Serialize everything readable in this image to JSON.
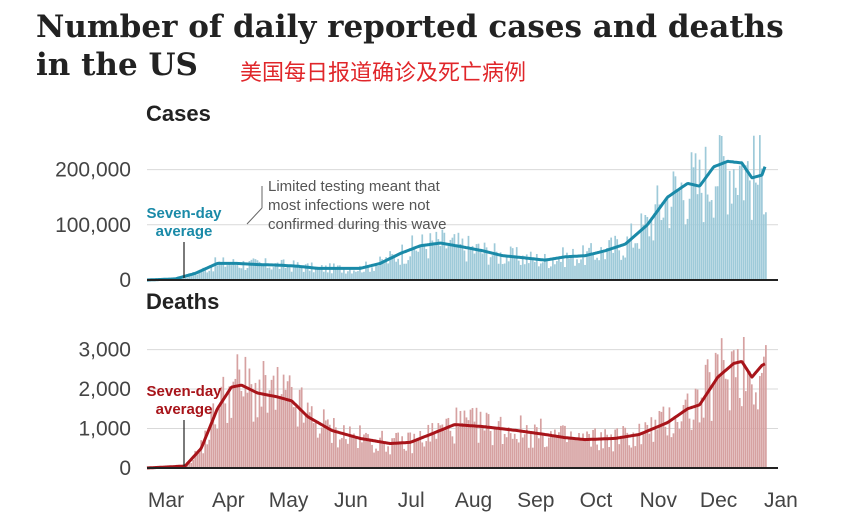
{
  "title": {
    "line1": "Number of daily reported cases and deaths",
    "line2": "in the US",
    "subtitle_cn": "美国每日报道确诊及死亡病例"
  },
  "months": [
    "Mar",
    "Apr",
    "May",
    "Jun",
    "Jul",
    "Aug",
    "Sep",
    "Oct",
    "Nov",
    "Dec",
    "Jan"
  ],
  "colors": {
    "cases_bar": "#9ecad9",
    "cases_line": "#1a8aa8",
    "deaths_bar": "#d6a1a1",
    "deaths_line": "#a8141a",
    "grid": "#d9d9d9",
    "axis": "#222222"
  },
  "chart_data": [
    {
      "type": "bar",
      "panel_title": "Cases",
      "ylim": [
        0,
        250000
      ],
      "yticks": [
        0,
        100000,
        200000
      ],
      "ytick_labels": [
        "0",
        "100,000",
        "200,000"
      ],
      "annotation": [
        "Limited testing meant that",
        "most infections were not",
        "confirmed during this wave"
      ],
      "avg_label": [
        "Seven-day",
        "average"
      ],
      "series_name": "Seven-day average",
      "seven_day_average": [
        [
          "2020-03-01",
          0
        ],
        [
          "2020-03-15",
          2000
        ],
        [
          "2020-03-25",
          12000
        ],
        [
          "2020-04-05",
          30000
        ],
        [
          "2020-04-15",
          30000
        ],
        [
          "2020-04-25",
          28000
        ],
        [
          "2020-05-05",
          27000
        ],
        [
          "2020-05-15",
          25000
        ],
        [
          "2020-05-25",
          21000
        ],
        [
          "2020-06-05",
          21000
        ],
        [
          "2020-06-15",
          21000
        ],
        [
          "2020-06-25",
          30000
        ],
        [
          "2020-07-05",
          48000
        ],
        [
          "2020-07-15",
          62000
        ],
        [
          "2020-07-25",
          67000
        ],
        [
          "2020-08-05",
          60000
        ],
        [
          "2020-08-15",
          53000
        ],
        [
          "2020-08-25",
          44000
        ],
        [
          "2020-09-05",
          40000
        ],
        [
          "2020-09-15",
          36000
        ],
        [
          "2020-09-25",
          42000
        ],
        [
          "2020-10-05",
          44000
        ],
        [
          "2020-10-15",
          53000
        ],
        [
          "2020-10-25",
          65000
        ],
        [
          "2020-11-05",
          100000
        ],
        [
          "2020-11-15",
          150000
        ],
        [
          "2020-11-25",
          175000
        ],
        [
          "2020-12-01",
          170000
        ],
        [
          "2020-12-08",
          205000
        ],
        [
          "2020-12-15",
          215000
        ],
        [
          "2020-12-22",
          212000
        ],
        [
          "2020-12-27",
          185000
        ],
        [
          "2021-01-01",
          190000
        ],
        [
          "2021-01-03",
          210000
        ]
      ],
      "daily_peak": 280000
    },
    {
      "type": "bar",
      "panel_title": "Deaths",
      "ylim": [
        0,
        3800
      ],
      "yticks": [
        0,
        1000,
        2000,
        3000
      ],
      "ytick_labels": [
        "0",
        "1,000",
        "2,000",
        "3,000"
      ],
      "avg_label": [
        "Seven-day",
        "average"
      ],
      "series_name": "Seven-day average",
      "seven_day_average": [
        [
          "2020-03-01",
          0
        ],
        [
          "2020-03-20",
          50
        ],
        [
          "2020-03-28",
          500
        ],
        [
          "2020-04-05",
          1500
        ],
        [
          "2020-04-12",
          2050
        ],
        [
          "2020-04-17",
          2100
        ],
        [
          "2020-04-25",
          1900
        ],
        [
          "2020-05-05",
          1800
        ],
        [
          "2020-05-12",
          1700
        ],
        [
          "2020-05-20",
          1300
        ],
        [
          "2020-06-01",
          950
        ],
        [
          "2020-06-15",
          750
        ],
        [
          "2020-06-30",
          620
        ],
        [
          "2020-07-10",
          650
        ],
        [
          "2020-07-20",
          850
        ],
        [
          "2020-08-01",
          1100
        ],
        [
          "2020-08-15",
          1050
        ],
        [
          "2020-09-01",
          950
        ],
        [
          "2020-09-15",
          850
        ],
        [
          "2020-09-25",
          770
        ],
        [
          "2020-10-05",
          720
        ],
        [
          "2020-10-20",
          750
        ],
        [
          "2020-11-01",
          850
        ],
        [
          "2020-11-15",
          1150
        ],
        [
          "2020-11-25",
          1500
        ],
        [
          "2020-12-01",
          1600
        ],
        [
          "2020-12-10",
          2300
        ],
        [
          "2020-12-18",
          2650
        ],
        [
          "2020-12-22",
          2700
        ],
        [
          "2020-12-27",
          2300
        ],
        [
          "2021-01-01",
          2600
        ],
        [
          "2021-01-03",
          2650
        ]
      ],
      "daily_peak": 3900
    }
  ]
}
